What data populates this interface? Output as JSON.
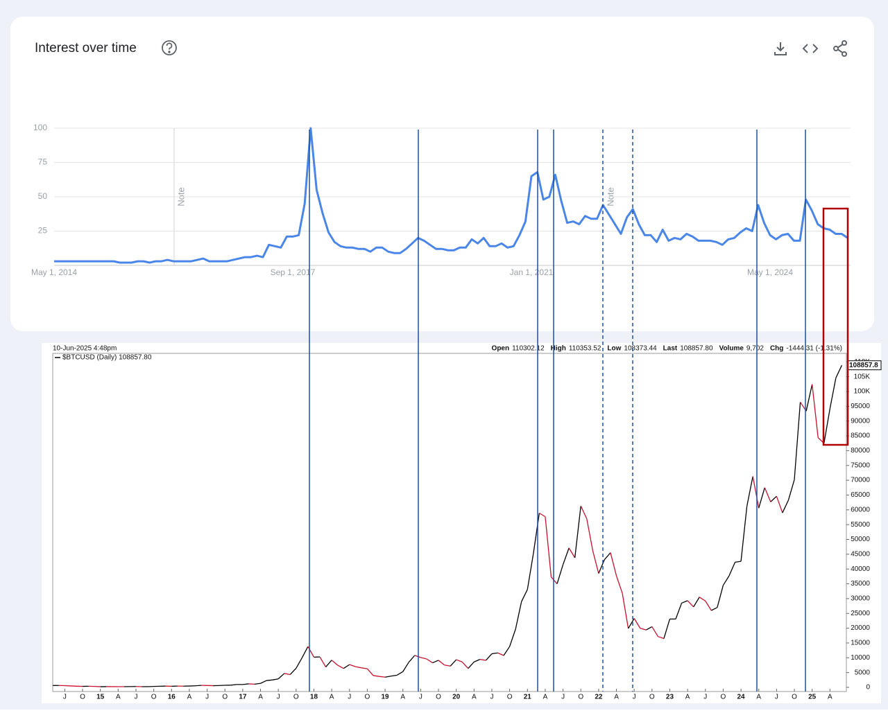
{
  "chart_data": [
    {
      "type": "line",
      "title": "Interest over time",
      "color": "#4a86e8",
      "grid": true,
      "ylim": [
        0,
        100
      ],
      "yticks": [
        25,
        50,
        75,
        100
      ],
      "annotations": [
        "Note",
        "Note"
      ],
      "categories": [
        "May 1, 2014",
        null,
        null,
        null,
        null,
        null,
        null,
        null,
        null,
        null,
        null,
        null,
        null,
        null,
        null,
        null,
        null,
        null,
        null,
        null,
        null,
        null,
        null,
        null,
        null,
        null,
        null,
        null,
        null,
        null,
        null,
        null,
        null,
        null,
        null,
        null,
        null,
        null,
        null,
        null,
        "Sep 1, 2017",
        null,
        null,
        null,
        null,
        null,
        null,
        null,
        null,
        null,
        null,
        null,
        null,
        null,
        null,
        null,
        null,
        null,
        null,
        null,
        null,
        null,
        null,
        null,
        null,
        null,
        null,
        null,
        null,
        null,
        null,
        null,
        null,
        null,
        null,
        null,
        null,
        null,
        null,
        null,
        "Jan 1, 2021",
        null,
        null,
        null,
        null,
        null,
        null,
        null,
        null,
        null,
        null,
        null,
        null,
        null,
        null,
        null,
        null,
        null,
        null,
        null,
        null,
        null,
        null,
        null,
        null,
        null,
        null,
        null,
        null,
        null,
        null,
        null,
        null,
        null,
        null,
        null,
        null,
        null,
        null,
        null,
        "May 1, 2024",
        null,
        null,
        null,
        null,
        null,
        null,
        null,
        null,
        null,
        null,
        null,
        null,
        null
      ],
      "values": [
        3,
        3,
        3,
        3,
        3,
        3,
        3,
        3,
        3,
        3,
        3,
        2,
        2,
        2,
        3,
        3,
        2,
        3,
        3,
        4,
        3,
        3,
        3,
        3,
        4,
        5,
        3,
        3,
        3,
        3,
        4,
        5,
        6,
        6,
        7,
        6,
        15,
        14,
        13,
        21,
        21,
        22,
        45,
        100,
        55,
        38,
        24,
        17,
        14,
        13,
        13,
        12,
        12,
        10,
        13,
        13,
        10,
        9,
        9,
        12,
        16,
        20,
        18,
        15,
        12,
        12,
        11,
        11,
        13,
        13,
        19,
        16,
        20,
        14,
        14,
        16,
        13,
        14,
        22,
        32,
        65,
        68,
        48,
        50,
        66,
        47,
        31,
        32,
        30,
        36,
        34,
        34,
        44,
        37,
        30,
        23,
        35,
        41,
        30,
        22,
        22,
        17,
        26,
        18,
        20,
        19,
        23,
        21,
        18,
        18,
        18,
        17,
        15,
        19,
        20,
        24,
        27,
        25,
        44,
        31,
        22,
        19,
        22,
        23,
        18,
        18,
        48,
        40,
        30,
        27,
        26,
        23,
        23,
        20
      ]
    },
    {
      "type": "line",
      "header": {
        "date": "10-Jun-2025 4:48pm",
        "stats": [
          {
            "label": "Open",
            "value": "110302.12"
          },
          {
            "label": "High",
            "value": "110353.52"
          },
          {
            "label": "Low",
            "value": "108373.44"
          },
          {
            "label": "Last",
            "value": "108857.80"
          },
          {
            "label": "Volume",
            "value": "9,702"
          },
          {
            "label": "Chg",
            "value": "-1444.31 (-1.31%)"
          }
        ]
      },
      "up_color": "#000000",
      "down_color": "#c8102e",
      "ylim": [
        0,
        113000
      ],
      "yticks": [
        0,
        5000,
        10000,
        15000,
        20000,
        25000,
        30000,
        35000,
        40000,
        45000,
        50000,
        55000,
        60000,
        65000,
        70000,
        75000,
        80000,
        85000,
        90000,
        95000,
        {
          "value": 100000,
          "label": "100K"
        },
        {
          "value": 105000,
          "label": "105K"
        },
        {
          "value": 110000,
          "label": "110K"
        }
      ],
      "categories": [
        null,
        null,
        "J",
        null,
        null,
        "O",
        null,
        null,
        "15",
        null,
        null,
        "A",
        null,
        null,
        "J",
        null,
        null,
        "O",
        null,
        null,
        "16",
        null,
        null,
        "A",
        null,
        null,
        "J",
        null,
        null,
        "O",
        null,
        null,
        "17",
        null,
        null,
        "A",
        null,
        null,
        "J",
        null,
        null,
        "O",
        null,
        null,
        "18",
        null,
        null,
        "A",
        null,
        null,
        "J",
        null,
        null,
        "O",
        null,
        null,
        "19",
        null,
        null,
        "A",
        null,
        null,
        "J",
        null,
        null,
        "O",
        null,
        null,
        "20",
        null,
        null,
        "A",
        null,
        null,
        "J",
        null,
        null,
        "O",
        null,
        null,
        "21",
        null,
        null,
        "A",
        null,
        null,
        "J",
        null,
        null,
        "O",
        null,
        null,
        "22",
        null,
        null,
        "A",
        null,
        null,
        "J",
        null,
        null,
        "O",
        null,
        null,
        "23",
        null,
        null,
        "A",
        null,
        null,
        "J",
        null,
        null,
        "O",
        null,
        null,
        "24",
        null,
        null,
        "A",
        null,
        null,
        "J",
        null,
        null,
        "O",
        null,
        null,
        "25",
        null,
        null,
        "A",
        null,
        null
      ],
      "series": [
        {
          "name": "$BTCUSD (Daily) 108857.80",
          "values": [
            630,
            640,
            590,
            480,
            390,
            340,
            380,
            320,
            220,
            250,
            245,
            235,
            230,
            260,
            285,
            230,
            235,
            315,
            380,
            430,
            370,
            440,
            415,
            450,
            530,
            670,
            625,
            575,
            610,
            700,
            745,
            965,
            970,
            1190,
            1080,
            1350,
            2300,
            2500,
            2870,
            4700,
            4340,
            6450,
            10000,
            13800,
            10200,
            10300,
            6900,
            9200,
            7500,
            6400,
            7700,
            7000,
            6600,
            6300,
            4000,
            3700,
            3450,
            3800,
            4100,
            5300,
            8500,
            10800,
            10100,
            9600,
            8300,
            9150,
            7550,
            7200,
            9350,
            8600,
            6400,
            8600,
            9450,
            9150,
            11350,
            11650,
            10780,
            13800,
            19700,
            29000,
            33100,
            45200,
            58900,
            57700,
            37300,
            35000,
            41500,
            47100,
            43800,
            61300,
            57000,
            46300,
            38500,
            43200,
            45500,
            37700,
            31800,
            19900,
            23300,
            20000,
            19400,
            20500,
            17200,
            16500,
            23100,
            23100,
            28500,
            29300,
            27200,
            30500,
            29200,
            26000,
            27000,
            34500,
            37700,
            42300,
            42600,
            61200,
            71300,
            60600,
            67500,
            62700,
            64600,
            59000,
            63300,
            70200,
            96400,
            93400,
            102400,
            84400,
            82500,
            94200,
            104600,
            108857.8
          ]
        }
      ]
    }
  ]
}
